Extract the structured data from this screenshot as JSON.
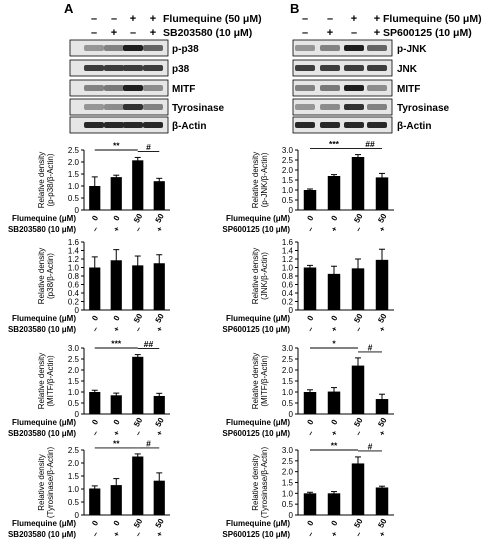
{
  "panels": [
    {
      "letter": "A",
      "header": [
        {
          "signs": [
            "–",
            "–",
            "+",
            "+"
          ],
          "label": "Flumequine (50 μM)"
        },
        {
          "signs": [
            "–",
            "+",
            "–",
            "+"
          ],
          "label": "SB203580 (10 μM)"
        }
      ],
      "blot_labels": [
        "p-p38",
        "p38",
        "MITF",
        "Tyrosinase",
        "β-Actin"
      ]
    },
    {
      "letter": "B",
      "header": [
        {
          "signs": [
            "–",
            "–",
            "+",
            "+"
          ],
          "label": "Flumequine (50 μM)"
        },
        {
          "signs": [
            "–",
            "+",
            "–",
            "+"
          ],
          "label": "SP600125 (10 μM)"
        }
      ],
      "blot_labels": [
        "p-JNK",
        "JNK",
        "MITF",
        "Tyrosinase",
        "β-Actin"
      ]
    }
  ],
  "chart_data": [
    {
      "type": "bar",
      "panel": "A",
      "ylabel": [
        "Relative density",
        "(p-p38/β-Actin)"
      ],
      "ylim": [
        0,
        2.5
      ],
      "yticks": [
        "0",
        "0.5",
        "1.0",
        "1.5",
        "2.0",
        "2.5"
      ],
      "values": [
        1.0,
        1.37,
        2.07,
        1.2
      ],
      "errors": [
        0.38,
        0.08,
        0.12,
        0.12
      ],
      "sig": [
        {
          "from": 0,
          "to": 2,
          "label": "**"
        },
        {
          "from": 2,
          "to": 3,
          "label": "#"
        }
      ],
      "row1": {
        "label": "Flumequine (μM)",
        "values": [
          "0",
          "0",
          "50",
          "50"
        ]
      },
      "row2": {
        "label": "SB203580 (10 μM)",
        "values": [
          "–",
          "+",
          "–",
          "+"
        ]
      }
    },
    {
      "type": "bar",
      "panel": "B",
      "ylabel": [
        "Relative density",
        "(p-JNK/β-Actin)"
      ],
      "ylim": [
        0,
        3.0
      ],
      "yticks": [
        "0",
        "0.5",
        "1.0",
        "1.5",
        "2.0",
        "2.5",
        "3.0"
      ],
      "values": [
        1.0,
        1.7,
        2.65,
        1.63
      ],
      "errors": [
        0.05,
        0.07,
        0.12,
        0.2
      ],
      "sig": [
        {
          "from": 0,
          "to": 2,
          "label": "***"
        },
        {
          "from": 2,
          "to": 3,
          "label": "##"
        }
      ],
      "row1": {
        "label": "Flumequine (μM)",
        "values": [
          "0",
          "0",
          "50",
          "50"
        ]
      },
      "row2": {
        "label": "SP600125 (10 μM)",
        "values": [
          "–",
          "+",
          "–",
          "+"
        ]
      }
    },
    {
      "type": "bar",
      "panel": "A",
      "ylabel": [
        "Relative density",
        "(p38/β-Actin)"
      ],
      "ylim": [
        0,
        1.6
      ],
      "yticks": [
        "0",
        "0.2",
        "0.4",
        "0.6",
        "0.8",
        "1.0",
        "1.2",
        "1.4",
        "1.6"
      ],
      "values": [
        1.0,
        1.17,
        1.05,
        1.1
      ],
      "errors": [
        0.25,
        0.25,
        0.22,
        0.2
      ],
      "sig": [],
      "row1": {
        "label": "Flumequine (μM)",
        "values": [
          "0",
          "0",
          "50",
          "50"
        ]
      },
      "row2": {
        "label": "SB203580 (10 μM)",
        "values": [
          "–",
          "+",
          "–",
          "+"
        ]
      }
    },
    {
      "type": "bar",
      "panel": "B",
      "ylabel": [
        "Relative density",
        "(JNK/β-Actin)"
      ],
      "ylim": [
        0,
        1.6
      ],
      "yticks": [
        "0",
        "0.2",
        "0.4",
        "0.6",
        "0.8",
        "1.0",
        "1.2",
        "1.4",
        "1.6"
      ],
      "values": [
        1.0,
        0.85,
        0.98,
        1.18
      ],
      "errors": [
        0.05,
        0.18,
        0.22,
        0.25
      ],
      "sig": [],
      "row1": {
        "label": "Flumequine (μM)",
        "values": [
          "0",
          "0",
          "50",
          "50"
        ]
      },
      "row2": {
        "label": "SP600125 (10 μM)",
        "values": [
          "–",
          "+",
          "–",
          "+"
        ]
      }
    },
    {
      "type": "bar",
      "panel": "A",
      "ylabel": [
        "Relative density",
        "(MITF/β-Actin)"
      ],
      "ylim": [
        0,
        3.0
      ],
      "yticks": [
        "0",
        "0.5",
        "1.0",
        "1.5",
        "2.0",
        "2.5",
        "3.0"
      ],
      "values": [
        1.0,
        0.85,
        2.6,
        0.82
      ],
      "errors": [
        0.08,
        0.1,
        0.1,
        0.12
      ],
      "sig": [
        {
          "from": 0,
          "to": 2,
          "label": "***"
        },
        {
          "from": 2,
          "to": 3,
          "label": "##"
        }
      ],
      "row1": {
        "label": "Flumequine (μM)",
        "values": [
          "0",
          "0",
          "50",
          "50"
        ]
      },
      "row2": {
        "label": "SB203580 (10 μM)",
        "values": [
          "–",
          "+",
          "–",
          "+"
        ]
      }
    },
    {
      "type": "bar",
      "panel": "B",
      "ylabel": [
        "Relative density",
        "(MITF/β-Actin)"
      ],
      "ylim": [
        0,
        3.0
      ],
      "yticks": [
        "0",
        "0.5",
        "1.0",
        "1.5",
        "2.0",
        "2.5",
        "3.0"
      ],
      "values": [
        1.0,
        1.02,
        2.2,
        0.68
      ],
      "errors": [
        0.1,
        0.18,
        0.35,
        0.22
      ],
      "sig": [
        {
          "from": 0,
          "to": 2,
          "label": "*"
        },
        {
          "from": 2,
          "to": 3,
          "label": "#"
        }
      ],
      "row1": {
        "label": "Flumequine (μM)",
        "values": [
          "0",
          "0",
          "50",
          "50"
        ]
      },
      "row2": {
        "label": "SP600125 (10 μM)",
        "values": [
          "–",
          "+",
          "–",
          "+"
        ]
      }
    },
    {
      "type": "bar",
      "panel": "A",
      "ylabel": [
        "Relative density",
        "(Tyrosinase/β-Actin)"
      ],
      "ylim": [
        0,
        2.5
      ],
      "yticks": [
        "0",
        "0.5",
        "1.0",
        "1.5",
        "2.0",
        "2.5"
      ],
      "values": [
        1.02,
        1.15,
        2.25,
        1.32
      ],
      "errors": [
        0.1,
        0.25,
        0.1,
        0.3
      ],
      "sig": [
        {
          "from": 0,
          "to": 2,
          "label": "**"
        },
        {
          "from": 2,
          "to": 3,
          "label": "#"
        }
      ],
      "row1": {
        "label": "Flumequine (μM)",
        "values": [
          "0",
          "0",
          "50",
          "50"
        ]
      },
      "row2": {
        "label": "SB203580 (10 μM)",
        "values": [
          "–",
          "+",
          "–",
          "+"
        ]
      }
    },
    {
      "type": "bar",
      "panel": "B",
      "ylabel": [
        "Relative density",
        "(Tyrosinase/β-Actin)"
      ],
      "ylim": [
        0,
        3.0
      ],
      "yticks": [
        "0",
        "0.5",
        "1.0",
        "1.5",
        "2.0",
        "2.5",
        "3.0"
      ],
      "values": [
        1.0,
        1.0,
        2.38,
        1.27
      ],
      "errors": [
        0.05,
        0.08,
        0.3,
        0.06
      ],
      "sig": [
        {
          "from": 0,
          "to": 2,
          "label": "**"
        },
        {
          "from": 2,
          "to": 3,
          "label": "#"
        }
      ],
      "row1": {
        "label": "Flumequine (μM)",
        "values": [
          "0",
          "0",
          "50",
          "50"
        ]
      },
      "row2": {
        "label": "SP600125 (10 μM)",
        "values": [
          "–",
          "+",
          "–",
          "+"
        ]
      }
    }
  ]
}
